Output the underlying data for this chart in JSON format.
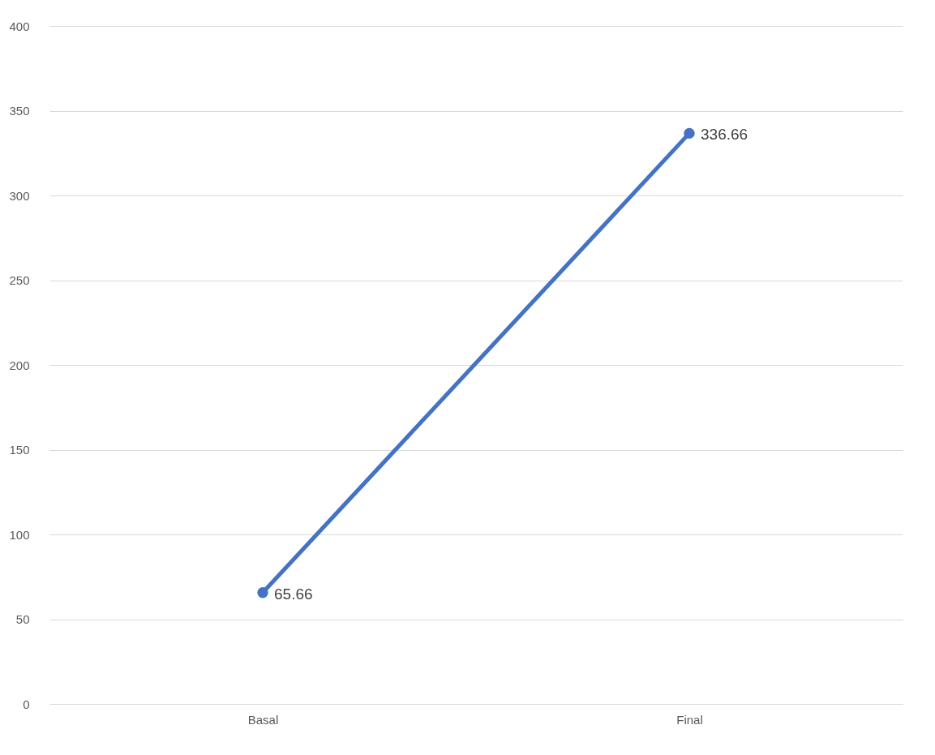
{
  "chart_data": {
    "type": "line",
    "categories": [
      "Basal",
      "Final"
    ],
    "series": [
      {
        "color": "#4472c4",
        "values": [
          65.66,
          336.66
        ]
      }
    ],
    "ylim": [
      0,
      400
    ],
    "yticks": [
      0,
      50,
      100,
      150,
      200,
      250,
      300,
      350,
      400
    ],
    "grid": "y",
    "marker": "circle",
    "line_style": "solid",
    "data_labels": true
  }
}
